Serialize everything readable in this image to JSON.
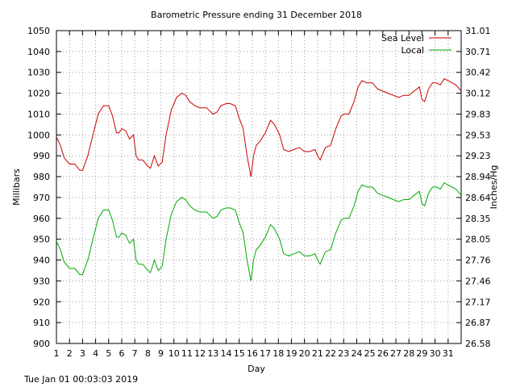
{
  "footer": {
    "timestamp": "Tue Jan 01 00:03:03 2019"
  },
  "chart_data": {
    "type": "line",
    "title": "Barometric Pressure ending 31 December 2018",
    "xlabel": "Day",
    "ylabel": "Millibars",
    "y2label": "Inches/Hg",
    "xlim": [
      1,
      32
    ],
    "ylim": [
      900,
      1050
    ],
    "x_ticks": [
      "1",
      "2",
      "3",
      "4",
      "5",
      "6",
      "7",
      "8",
      "9",
      "10",
      "11",
      "12",
      "13",
      "14",
      "15",
      "16",
      "17",
      "18",
      "19",
      "20",
      "21",
      "22",
      "23",
      "24",
      "25",
      "26",
      "27",
      "28",
      "29",
      "30",
      "31"
    ],
    "y_ticks": [
      900,
      910,
      920,
      930,
      940,
      950,
      960,
      970,
      980,
      990,
      1000,
      1010,
      1020,
      1030,
      1040,
      1050
    ],
    "y2_ticks": [
      "26.58",
      "26.87",
      "27.17",
      "27.46",
      "27.76",
      "28.05",
      "28.35",
      "28.64",
      "28.94",
      "29.23",
      "29.53",
      "29.83",
      "30.12",
      "30.42",
      "30.71",
      "31.01"
    ],
    "grid": true,
    "legend_position": "top-right",
    "colors": {
      "sea_level": "#cc0000",
      "local": "#00aa00"
    },
    "series": [
      {
        "name": "Sea Level",
        "x": [
          1,
          1.3,
          1.6,
          2,
          2.4,
          2.8,
          3,
          3.4,
          3.8,
          4.2,
          4.6,
          5,
          5.3,
          5.6,
          5.8,
          6,
          6.3,
          6.6,
          6.9,
          7.1,
          7.3,
          7.6,
          8,
          8.2,
          8.5,
          8.8,
          9.1,
          9.4,
          9.8,
          10.2,
          10.6,
          10.9,
          11.2,
          11.6,
          12,
          12.5,
          13,
          13.3,
          13.6,
          14,
          14.3,
          14.7,
          15,
          15.3,
          15.6,
          15.9,
          16.1,
          16.3,
          16.6,
          17,
          17.4,
          17.7,
          18.1,
          18.4,
          18.8,
          19.2,
          19.6,
          20,
          20.4,
          20.8,
          21,
          21.2,
          21.6,
          22,
          22.4,
          22.8,
          23,
          23.4,
          23.8,
          24.1,
          24.4,
          24.8,
          25.2,
          25.6,
          26,
          26.4,
          26.8,
          27.2,
          27.6,
          28,
          28.4,
          28.8,
          29,
          29.2,
          29.5,
          29.8,
          30.1,
          30.4,
          30.7,
          31,
          31.3,
          31.6,
          32
        ],
        "y": [
          999,
          995,
          989,
          986,
          986,
          983,
          983,
          990,
          1000,
          1010,
          1014,
          1014,
          1009,
          1001,
          1001,
          1003,
          1002,
          998,
          1000,
          990,
          988,
          988,
          985,
          984,
          990,
          985,
          987,
          1000,
          1012,
          1018,
          1020,
          1019,
          1016,
          1014,
          1013,
          1013,
          1010,
          1011,
          1014,
          1015,
          1015,
          1014,
          1008,
          1003,
          990,
          980,
          990,
          995,
          997,
          1001,
          1007,
          1005,
          1000,
          993,
          992,
          993,
          994,
          992,
          992,
          993,
          990,
          988,
          994,
          995,
          1003,
          1009,
          1010,
          1010,
          1016,
          1023,
          1026,
          1025,
          1025,
          1022,
          1021,
          1020,
          1019,
          1018,
          1019,
          1019,
          1021,
          1023,
          1017,
          1016,
          1022,
          1025,
          1025,
          1024,
          1027,
          1026,
          1025,
          1024,
          1021
        ]
      },
      {
        "name": "Local",
        "x": [
          1,
          1.3,
          1.6,
          2,
          2.4,
          2.8,
          3,
          3.4,
          3.8,
          4.2,
          4.6,
          5,
          5.3,
          5.6,
          5.8,
          6,
          6.3,
          6.6,
          6.9,
          7.1,
          7.3,
          7.6,
          8,
          8.2,
          8.5,
          8.8,
          9.1,
          9.4,
          9.8,
          10.2,
          10.6,
          10.9,
          11.2,
          11.6,
          12,
          12.5,
          13,
          13.3,
          13.6,
          14,
          14.3,
          14.7,
          15,
          15.3,
          15.6,
          15.9,
          16.1,
          16.3,
          16.6,
          17,
          17.4,
          17.7,
          18.1,
          18.4,
          18.8,
          19.2,
          19.6,
          20,
          20.4,
          20.8,
          21,
          21.2,
          21.6,
          22,
          22.4,
          22.8,
          23,
          23.4,
          23.8,
          24.1,
          24.4,
          24.8,
          25.2,
          25.6,
          26,
          26.4,
          26.8,
          27.2,
          27.6,
          28,
          28.4,
          28.8,
          29,
          29.2,
          29.5,
          29.8,
          30.1,
          30.4,
          30.7,
          31,
          31.3,
          31.6,
          32
        ],
        "y": [
          949,
          945,
          939,
          936,
          936,
          933,
          933,
          940,
          950,
          960,
          964,
          964,
          959,
          951,
          951,
          953,
          952,
          948,
          950,
          940,
          938,
          938,
          935,
          934,
          940,
          935,
          937,
          950,
          962,
          968,
          970,
          969,
          966,
          964,
          963,
          963,
          960,
          961,
          964,
          965,
          965,
          964,
          958,
          953,
          940,
          930,
          940,
          945,
          947,
          951,
          957,
          955,
          950,
          943,
          942,
          943,
          944,
          942,
          942,
          943,
          940,
          938,
          944,
          945,
          953,
          959,
          960,
          960,
          966,
          973,
          976,
          975,
          975,
          972,
          971,
          970,
          969,
          968,
          969,
          969,
          971,
          973,
          967,
          966,
          972,
          975,
          975,
          974,
          977,
          976,
          975,
          974,
          971
        ]
      }
    ]
  }
}
